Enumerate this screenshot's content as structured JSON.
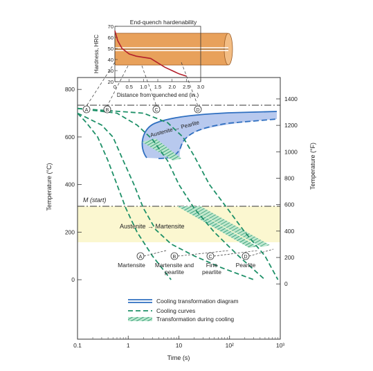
{
  "inset": {
    "title": "End-quench hardenability",
    "ylabel": "Hardness, HRC",
    "xlabel": "Distance from quenched end (in.)",
    "yticks": [
      "70",
      "60",
      "50",
      "40",
      "30",
      "20"
    ],
    "xticks": [
      "0",
      "0.5",
      "1.0",
      "1.5",
      "2.0",
      "2.5",
      "3.0"
    ],
    "curve": {
      "x_in": [
        0,
        0.1,
        0.25,
        0.5,
        0.75,
        1.0,
        1.25,
        1.5,
        1.75,
        2.0,
        2.25,
        2.5
      ],
      "hrc": [
        66,
        57,
        50,
        45,
        43,
        42,
        41,
        37,
        33,
        30,
        27,
        25
      ]
    },
    "bar_color": "#e8a15b"
  },
  "main": {
    "ylabel_left": "Temperature (°C)",
    "ylabel_right": "Temperature (°F)",
    "xlabel": "Time (s)",
    "xlim": [
      0.1,
      1000
    ],
    "x_scale": "log",
    "ylim_c": [
      -250,
      850
    ],
    "xticks": [
      "0.1",
      "1",
      "10",
      "10²",
      "10³"
    ],
    "yticks_left": [
      "800",
      "600",
      "400",
      "200",
      "0"
    ],
    "yticks_right": [
      "1400",
      "1200",
      "1000",
      "800",
      "600",
      "400",
      "200",
      "0"
    ],
    "eutectoid_c": 727,
    "ms_c": 215,
    "ms_label": "M (start)",
    "austenite_martensite_label": "Austenite → Martensite",
    "austenite_pearlite_label": "Austenite → Pearlite",
    "curve_markers": [
      "A",
      "B",
      "C",
      "D"
    ],
    "result_markers": [
      "A",
      "B",
      "C",
      "D"
    ],
    "result_labels": [
      {
        "line1": "Martensite",
        "line2": ""
      },
      {
        "line1": "Martensite and",
        "line2": "pearlite"
      },
      {
        "line1": "Fine",
        "line2": "pearlite"
      },
      {
        "line1": "Pearlite",
        "line2": ""
      }
    ],
    "legend": [
      "Cooling transformation diagram",
      "Cooling curves",
      "Transformation during cooling"
    ],
    "colors": {
      "ctd": "#2f6fc0",
      "ctd_fill": "#b8c9ee",
      "cooling": "#1e9068",
      "martensite_band": "#fbf7d0"
    }
  },
  "chart_data": {
    "type": "line",
    "title": "",
    "xlabel": "Time (s)",
    "ylabel": "Temperature (°C)",
    "x_scale": "log",
    "xlim": [
      0.1,
      1000
    ],
    "ylim": [
      -250,
      850
    ],
    "series": [
      {
        "name": "A",
        "x": [
          0.1,
          0.15,
          0.25,
          0.4,
          0.6,
          0.9,
          1.5,
          3,
          7
        ],
        "y": [
          700,
          660,
          600,
          500,
          400,
          300,
          200,
          100,
          0
        ]
      },
      {
        "name": "B",
        "x": [
          0.1,
          0.3,
          0.5,
          0.8,
          1.3,
          2,
          3.5,
          7,
          20,
          70,
          300
        ],
        "y": [
          700,
          650,
          600,
          500,
          400,
          300,
          210,
          150,
          100,
          50,
          0
        ]
      },
      {
        "name": "C",
        "x": [
          0.1,
          0.6,
          1.5,
          3,
          6,
          10,
          20,
          50,
          150,
          500
        ],
        "y": [
          720,
          700,
          650,
          590,
          500,
          400,
          300,
          200,
          100,
          0
        ]
      },
      {
        "name": "D",
        "x": [
          0.1,
          2,
          6,
          12,
          20,
          40,
          90,
          200,
          500,
          900
        ],
        "y": [
          720,
          700,
          660,
          600,
          520,
          400,
          300,
          200,
          100,
          0
        ]
      }
    ]
  }
}
